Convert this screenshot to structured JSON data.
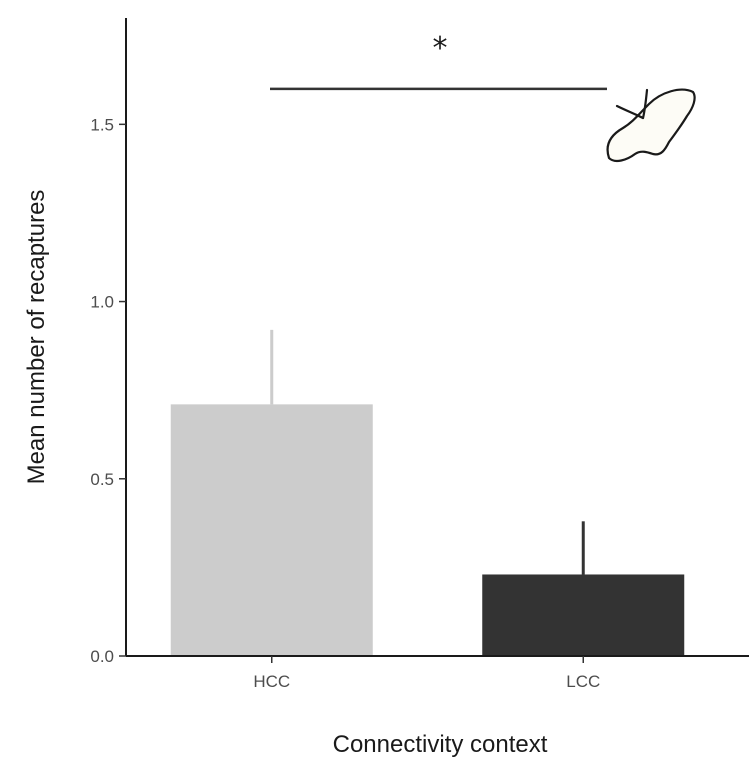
{
  "chart_data": {
    "type": "bar",
    "title": "",
    "xlabel": "Connectivity context",
    "ylabel": "Mean number of recaptures",
    "categories": [
      "HCC",
      "LCC"
    ],
    "values": [
      0.71,
      0.23
    ],
    "error_upper": [
      0.92,
      0.38
    ],
    "bar_colors": [
      "#cccccc",
      "#333333"
    ],
    "ylim": [
      0,
      1.8
    ],
    "yticks": [
      0.0,
      0.5,
      1.0,
      1.5
    ],
    "ytick_labels": [
      "0.0",
      "0.5",
      "1.0",
      "1.5"
    ],
    "grid": false,
    "significance": {
      "between": [
        "HCC",
        "LCC"
      ],
      "y": 1.6,
      "label": "*"
    },
    "icon": "butterfly-icon"
  }
}
